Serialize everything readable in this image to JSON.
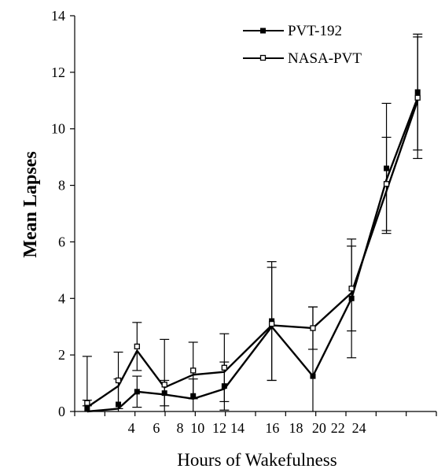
{
  "chart_data": {
    "type": "line",
    "title": "",
    "xlabel": "Hours of Wakefulness",
    "ylabel": "Mean Lapses",
    "ylim": [
      0,
      14
    ],
    "y_ticks": [
      "0",
      "2",
      "4",
      "6",
      "8",
      "10",
      "12",
      "14"
    ],
    "x_tick_labels": [
      "4",
      "6",
      "8",
      "10",
      "12",
      "14",
      "16",
      "18",
      "20",
      "22",
      "24"
    ],
    "x_tick_label_positions": [
      4.55,
      6.55,
      8.45,
      9.85,
      11.6,
      13.05,
      15.85,
      17.75,
      19.6,
      21.1,
      22.8
    ],
    "grid": false,
    "legend_position": "top-right",
    "series": [
      {
        "name": "PVT-192",
        "marker": "filled-square",
        "color": "#000000",
        "x": [
          1,
          3.5,
          5,
          7.2,
          9.5,
          12,
          15.8,
          19.1,
          22.2,
          25,
          27.5
        ],
        "y": [
          0.1,
          0.25,
          0.7,
          0.65,
          0.55,
          0.9,
          3.2,
          1.25,
          4.0,
          8.6,
          11.3
        ],
        "error": [
          1.85,
          0.9,
          0.55,
          0.45,
          0.6,
          0.85,
          2.1,
          2.45,
          2.1,
          2.3,
          2.05
        ]
      },
      {
        "name": "NASA-PVT",
        "marker": "open-square",
        "color": "#000000",
        "x": [
          1,
          3.5,
          5,
          7.2,
          9.5,
          12,
          15.8,
          19.1,
          22.2,
          25,
          27.5
        ],
        "y": [
          0.3,
          1.1,
          2.3,
          0.95,
          1.45,
          1.55,
          3.1,
          2.95,
          4.35,
          8.05,
          11.1
        ],
        "error": [
          0.1,
          1.0,
          0.85,
          1.6,
          1.0,
          1.2,
          2.0,
          0.75,
          1.5,
          1.65,
          2.15
        ]
      }
    ],
    "trend_lines": [
      {
        "series": "PVT-192",
        "x": [
          1,
          3.5,
          5,
          7.2,
          9.5,
          12,
          15.8,
          19.1,
          22.2,
          25,
          27.5
        ],
        "y": [
          0.0,
          0.1,
          0.7,
          0.6,
          0.45,
          0.8,
          3.0,
          1.25,
          4.0,
          8.2,
          11.1
        ]
      },
      {
        "series": "NASA-PVT",
        "x": [
          1,
          3.5,
          5,
          7.2,
          9.5,
          12,
          15.8,
          19.1,
          22.2,
          25,
          27.5
        ],
        "y": [
          0.15,
          0.9,
          2.15,
          0.85,
          1.3,
          1.4,
          3.05,
          2.95,
          4.2,
          7.8,
          11.0
        ]
      }
    ],
    "xlim": [
      0,
      29
    ]
  }
}
